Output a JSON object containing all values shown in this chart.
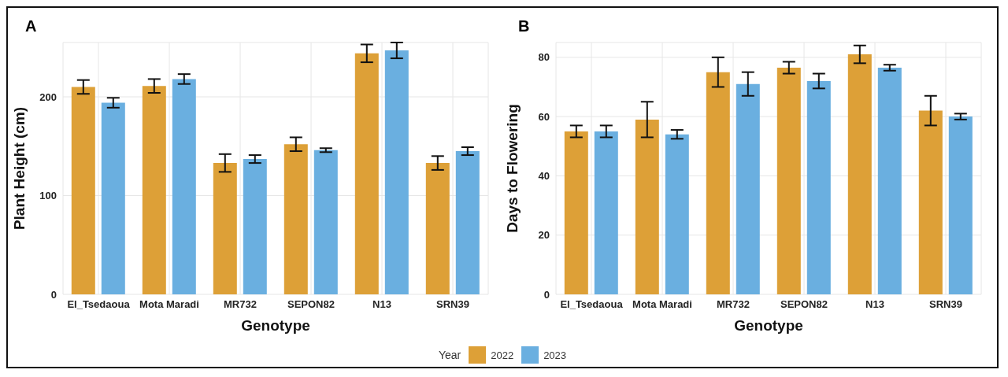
{
  "chart_data": [
    {
      "type": "bar",
      "title": "A",
      "xlabel": "Genotype",
      "ylabel": "Plant Height (cm)",
      "legend_title": "Year",
      "legend": "bottom",
      "grid": true,
      "categories": [
        "El_Tsedaoua",
        "Mota Maradi",
        "MR732",
        "SEPON82",
        "N13",
        "SRN39"
      ],
      "ylim": [
        0,
        255
      ],
      "yticks": [
        0,
        100,
        200
      ],
      "series": [
        {
          "name": "2022",
          "color": "#dda037",
          "values": [
            210,
            211,
            133,
            152,
            244,
            133
          ],
          "errors": [
            7,
            7,
            9,
            7,
            9,
            7
          ]
        },
        {
          "name": "2023",
          "color": "#6aafe0",
          "values": [
            194,
            218,
            137,
            146,
            247,
            145
          ],
          "errors": [
            5,
            5,
            4,
            2,
            8,
            4
          ]
        }
      ]
    },
    {
      "type": "bar",
      "title": "B",
      "xlabel": "Genotype",
      "ylabel": "Days to Flowering",
      "grid": true,
      "categories": [
        "El_Tsedaoua",
        "Mota Maradi",
        "MR732",
        "SEPON82",
        "N13",
        "SRN39"
      ],
      "ylim": [
        0,
        85
      ],
      "yticks": [
        0,
        20,
        40,
        60,
        80
      ],
      "series": [
        {
          "name": "2022",
          "color": "#dda037",
          "values": [
            55,
            59,
            75,
            76.5,
            81,
            62
          ],
          "errors": [
            2,
            6,
            5,
            2,
            3,
            5
          ]
        },
        {
          "name": "2023",
          "color": "#6aafe0",
          "values": [
            55,
            54,
            71,
            72,
            76.5,
            60
          ],
          "errors": [
            2,
            1.5,
            4,
            2.5,
            1,
            1
          ]
        }
      ]
    }
  ]
}
